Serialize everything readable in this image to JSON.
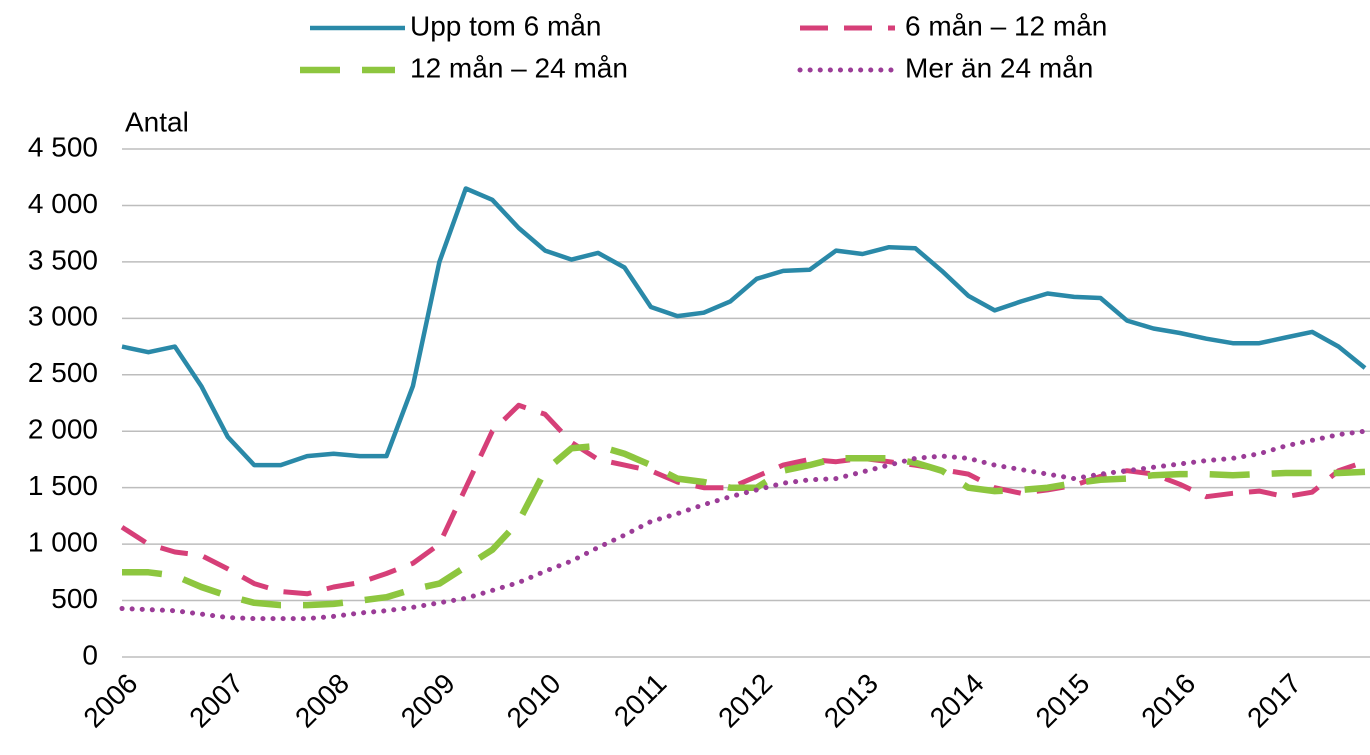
{
  "chart_data": {
    "type": "line",
    "y_label": "Antal",
    "categories": [
      "2006",
      null,
      null,
      null,
      "2007",
      null,
      null,
      null,
      "2008",
      null,
      null,
      null,
      "2009",
      null,
      null,
      null,
      "2010",
      null,
      null,
      null,
      "2011",
      null,
      null,
      null,
      "2012",
      null,
      null,
      null,
      "2013",
      null,
      null,
      null,
      "2014",
      null,
      null,
      null,
      "2015",
      null,
      null,
      null,
      "2016",
      null,
      null,
      null,
      "2017",
      null,
      null,
      null
    ],
    "series": [
      {
        "name": "Upp tom 6 mån",
        "color": "#2a89a8",
        "style": "solid",
        "values": [
          2750,
          2700,
          2750,
          2400,
          1950,
          1700,
          1700,
          1780,
          1800,
          1780,
          1780,
          2400,
          3500,
          4150,
          4050,
          3800,
          3600,
          3520,
          3580,
          3450,
          3100,
          3020,
          3050,
          3150,
          3350,
          3420,
          3430,
          3600,
          3570,
          3630,
          3620,
          3420,
          3200,
          3070,
          3150,
          3220,
          3190,
          3180,
          2980,
          2910,
          2870,
          2820,
          2780,
          2780,
          2830,
          2880,
          2750,
          2560
        ]
      },
      {
        "name": "6 mån – 12 mån",
        "color": "#d63f78",
        "style": "dashed",
        "values": [
          1150,
          1000,
          930,
          900,
          780,
          650,
          580,
          560,
          620,
          660,
          740,
          830,
          1000,
          1500,
          2000,
          2230,
          2150,
          1900,
          1750,
          1700,
          1650,
          1550,
          1500,
          1500,
          1600,
          1700,
          1750,
          1730,
          1760,
          1730,
          1700,
          1660,
          1620,
          1500,
          1450,
          1480,
          1520,
          1600,
          1650,
          1620,
          1530,
          1420,
          1450,
          1470,
          1420,
          1460,
          1650,
          1730
        ]
      },
      {
        "name": "12 mån – 24 mån",
        "color": "#8dc63f",
        "style": "longdash",
        "values": [
          750,
          750,
          720,
          620,
          540,
          480,
          460,
          460,
          470,
          500,
          530,
          600,
          650,
          800,
          950,
          1200,
          1650,
          1850,
          1870,
          1800,
          1700,
          1580,
          1550,
          1500,
          1500,
          1650,
          1700,
          1760,
          1760,
          1760,
          1720,
          1650,
          1500,
          1470,
          1480,
          1500,
          1540,
          1570,
          1580,
          1610,
          1620,
          1620,
          1610,
          1620,
          1630,
          1630,
          1630,
          1640
        ]
      },
      {
        "name": "Mer än 24 mån",
        "color": "#9b3c97",
        "style": "dotted",
        "values": [
          430,
          420,
          410,
          380,
          350,
          340,
          340,
          340,
          360,
          390,
          410,
          440,
          480,
          520,
          590,
          660,
          760,
          850,
          970,
          1080,
          1200,
          1270,
          1350,
          1420,
          1480,
          1540,
          1570,
          1580,
          1640,
          1700,
          1760,
          1780,
          1760,
          1700,
          1660,
          1620,
          1580,
          1620,
          1650,
          1680,
          1710,
          1740,
          1760,
          1800,
          1870,
          1920,
          1970,
          2000
        ]
      }
    ],
    "ylim": [
      0,
      4500
    ],
    "yticks": [
      0,
      500,
      {
        "value": 1000,
        "label": "1 000"
      },
      {
        "value": 1500,
        "label": "1 500"
      },
      {
        "value": 2000,
        "label": "2 000"
      },
      {
        "value": 2500,
        "label": "2 500"
      },
      {
        "value": 3000,
        "label": "3 000"
      },
      {
        "value": 3500,
        "label": "3 500"
      },
      {
        "value": 4000,
        "label": "4 000"
      },
      {
        "value": 4500,
        "label": "4 500"
      }
    ],
    "grid": true
  }
}
